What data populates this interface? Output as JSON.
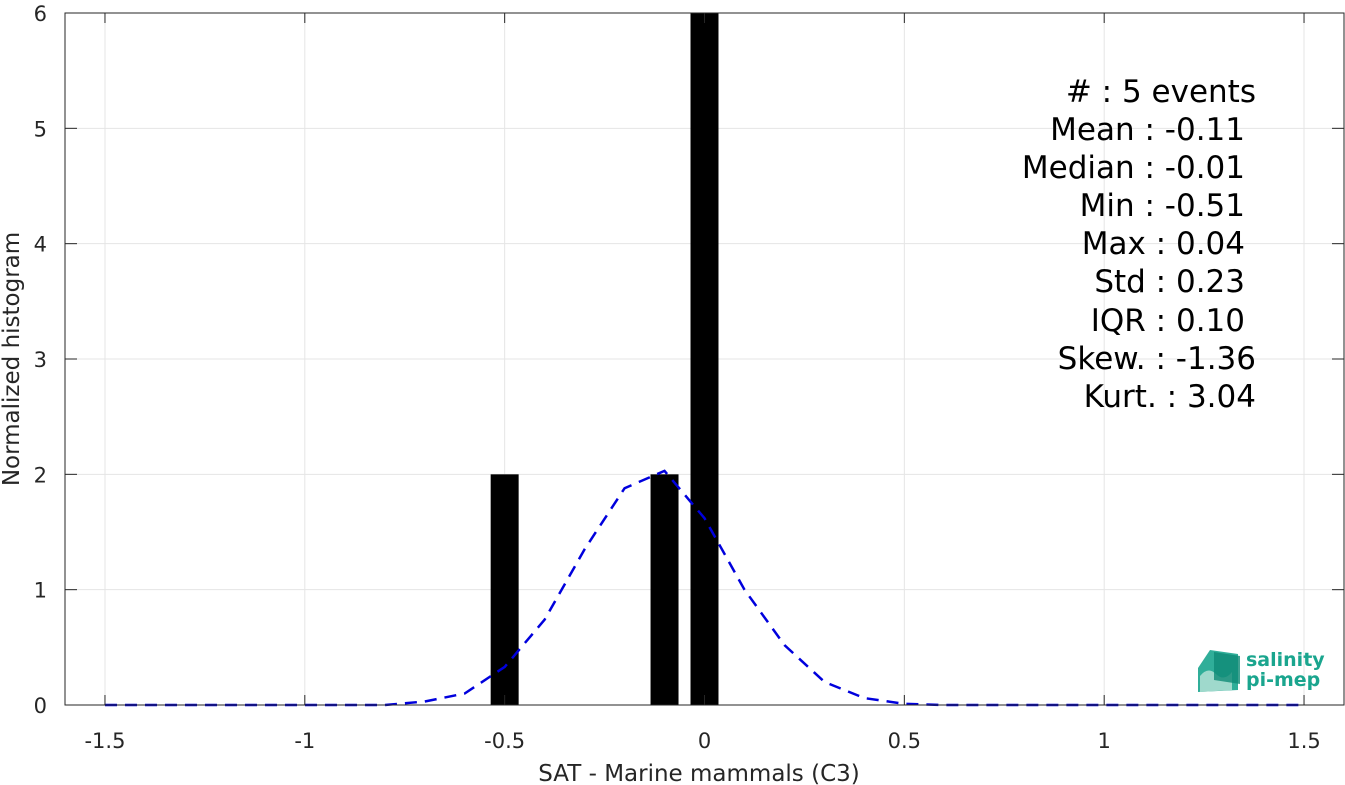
{
  "chart_data": {
    "type": "bar",
    "xlabel": "SAT - Marine mammals (C3)",
    "ylabel": "Normalized histogram",
    "xlim": [
      -1.6,
      1.6
    ],
    "ylim": [
      0,
      6
    ],
    "xticks": [
      -1.5,
      -1,
      -0.5,
      0,
      0.5,
      1,
      1.5
    ],
    "xtick_labels": [
      "-1.5",
      "-1",
      "-0.5",
      "0",
      "0.5",
      "1",
      "1.5"
    ],
    "yticks": [
      0,
      1,
      2,
      3,
      4,
      5,
      6
    ],
    "ytick_labels": [
      "0",
      "1",
      "2",
      "3",
      "4",
      "5",
      "6"
    ],
    "grid": true,
    "bar_color": "#000000",
    "bars": [
      {
        "x": -0.5,
        "width": 0.07,
        "value": 2
      },
      {
        "x": -0.1,
        "width": 0.07,
        "value": 2
      },
      {
        "x": 0.0,
        "width": 0.07,
        "value": 6
      }
    ],
    "fit_curve": {
      "style": "dashed",
      "color": "#0000dd",
      "x": [
        -1.5,
        -1.4,
        -1.3,
        -1.2,
        -1.1,
        -1.0,
        -0.9,
        -0.8,
        -0.7,
        -0.6,
        -0.5,
        -0.4,
        -0.3,
        -0.2,
        -0.1,
        0.0,
        0.1,
        0.2,
        0.3,
        0.4,
        0.5,
        0.6,
        0.7,
        0.8,
        0.9,
        1.0,
        1.1,
        1.2,
        1.3,
        1.4,
        1.5
      ],
      "y": [
        0.0,
        0.0,
        0.0,
        0.0,
        0.0,
        0.0,
        0.0,
        0.0,
        0.03,
        0.1,
        0.33,
        0.74,
        1.35,
        1.88,
        2.03,
        1.62,
        1.0,
        0.52,
        0.2,
        0.06,
        0.01,
        0.0,
        0.0,
        0.0,
        0.0,
        0.0,
        0.0,
        0.0,
        0.0,
        0.0,
        0.0
      ]
    },
    "annotations": [
      "#  : 5 events",
      "Mean : -0.11",
      "Median : -0.01",
      "Min : -0.51",
      "Max : 0.04",
      "Std : 0.23",
      "IQR : 0.10",
      "Skew. : -1.36",
      "Kurt. : 3.04"
    ]
  },
  "logo": {
    "line1": "salinity",
    "line2": "pi-mep",
    "color": "#1aa58e"
  }
}
